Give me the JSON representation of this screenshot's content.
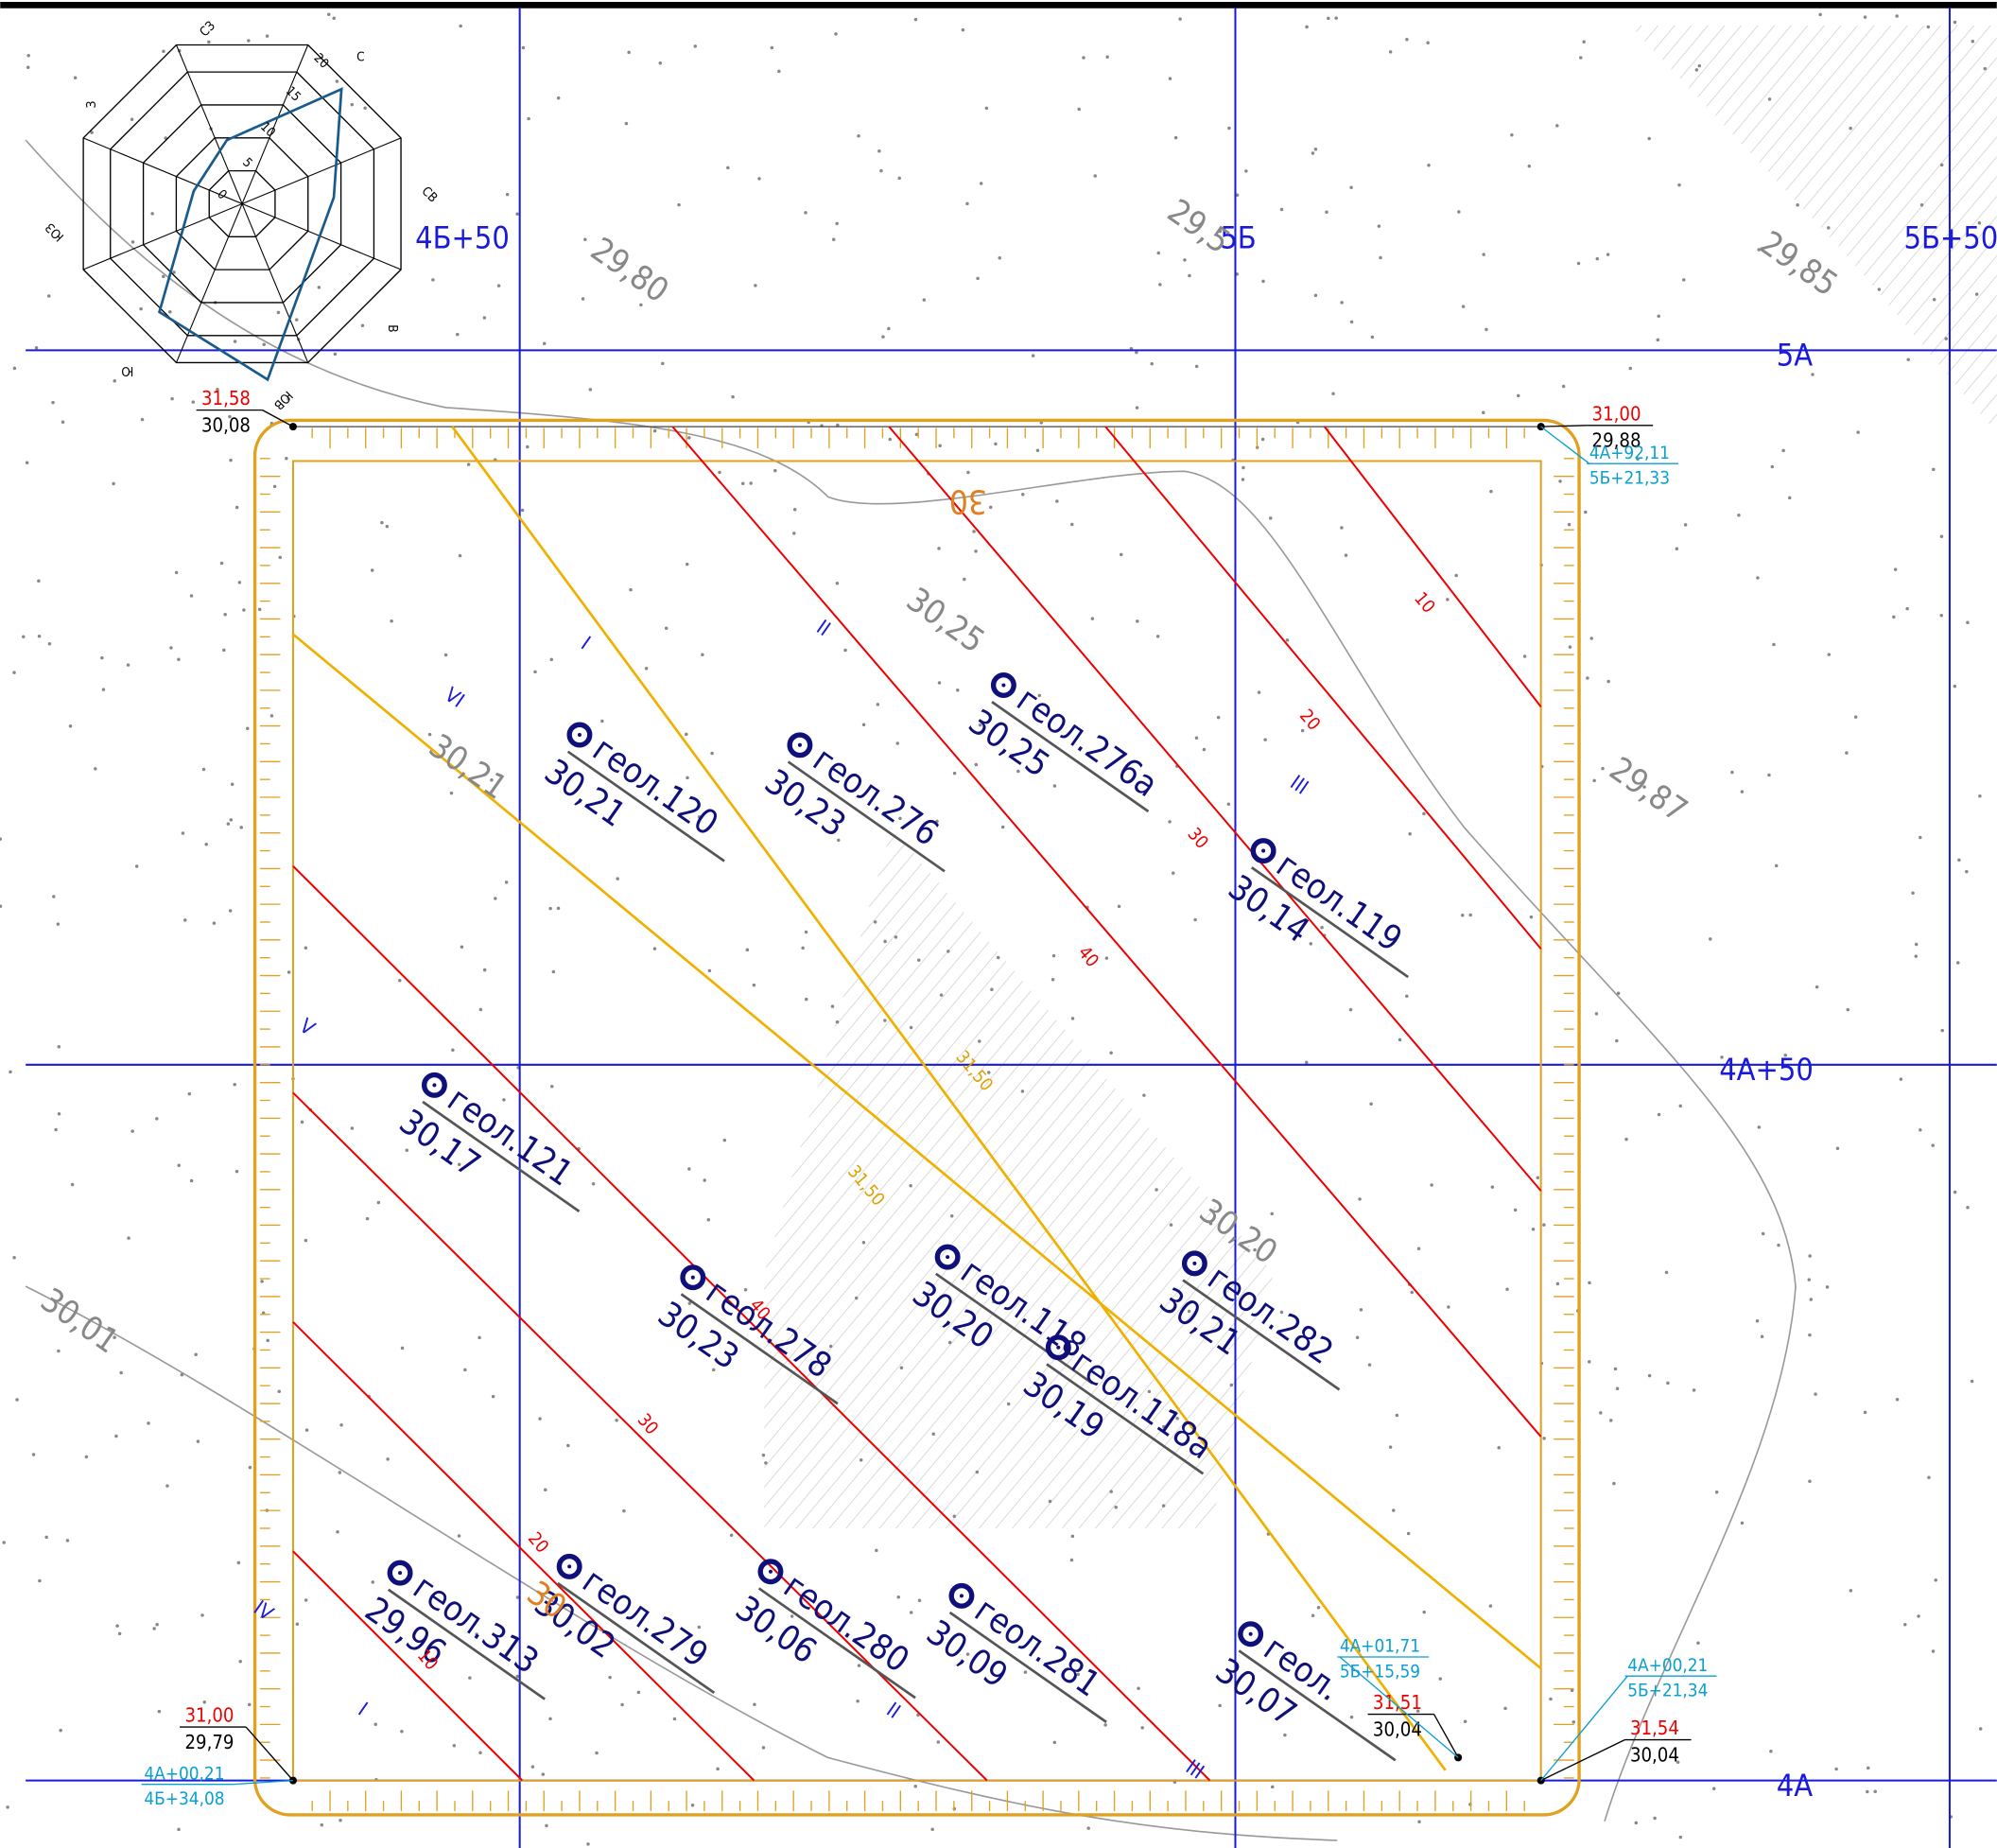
{
  "grid_labels": {
    "vertical": [
      "4Б+50",
      "5Б",
      "5Б+50"
    ],
    "horizontal": [
      "5А",
      "4А+50",
      "4А"
    ]
  },
  "wind_rose": {
    "directions": [
      "С",
      "СВ",
      "В",
      "ЮВ",
      "Ю",
      "ЮЗ",
      "З",
      "СЗ"
    ],
    "scale": [
      "0",
      "5",
      "10",
      "15",
      "20"
    ]
  },
  "terrain_elevations": [
    "29,80",
    "29,5",
    "29,85",
    "30,25",
    "30,21",
    "29,87",
    "30,01",
    "30,20"
  ],
  "boreholes": [
    {
      "name": "геол.120",
      "elevation": "30,21"
    },
    {
      "name": "геол.276",
      "elevation": "30,23"
    },
    {
      "name": "геол.276а",
      "elevation": "30,25"
    },
    {
      "name": "геол.119",
      "elevation": "30,14"
    },
    {
      "name": "геол.121",
      "elevation": "30,17"
    },
    {
      "name": "геол.278",
      "elevation": "30,23"
    },
    {
      "name": "геол.118",
      "elevation": "30,20"
    },
    {
      "name": "геол.118а",
      "elevation": "30,19"
    },
    {
      "name": "геол.282",
      "elevation": "30,21"
    },
    {
      "name": "геол.313",
      "elevation": "29,96"
    },
    {
      "name": "геол.279",
      "elevation": "30,02"
    },
    {
      "name": "геол.280",
      "elevation": "30,06"
    },
    {
      "name": "геол.281",
      "elevation": "30,09"
    },
    {
      "name": "геол.",
      "elevation": "30,07"
    }
  ],
  "corner_points": [
    {
      "design": "31,58",
      "existing": "30,08"
    },
    {
      "design": "31,00",
      "existing": "29,88",
      "coord_a": "4А+92,11",
      "coord_b": "5Б+21,33"
    },
    {
      "design": "31,00",
      "existing": "29,79",
      "coord_a": "4А+00,21",
      "coord_b": "4Б+34,08"
    },
    {
      "design": "31,54",
      "existing": "30,04",
      "coord_a": "4А+00,21",
      "coord_b": "5Б+21,34"
    },
    {
      "design": "31,51",
      "existing": "30,04",
      "coord_a": "4А+01,71",
      "coord_b": "5Б+15,59"
    }
  ],
  "red_contour_labels": [
    "10",
    "20",
    "30",
    "40",
    "40",
    "30",
    "20",
    "10"
  ],
  "orange_labels": [
    "31,50",
    "31,50",
    "30",
    "30"
  ],
  "sector_labels": [
    "VI",
    "I",
    "II",
    "III",
    "V",
    "IV",
    "I",
    "II",
    "III"
  ]
}
